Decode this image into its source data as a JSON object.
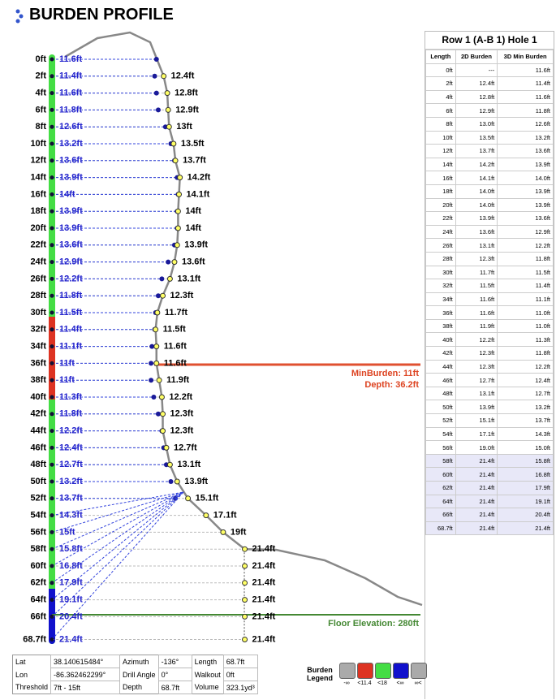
{
  "header": {
    "title": "BURDEN PROFILE"
  },
  "profile": {
    "burden_3d": [
      "11.6ft",
      "11.4ft",
      "11.6ft",
      "11.8ft",
      "12.6ft",
      "13.2ft",
      "13.6ft",
      "13.9ft",
      "14ft",
      "13.9ft",
      "13.9ft",
      "13.6ft",
      "12.9ft",
      "12.2ft",
      "11.8ft",
      "11.5ft",
      "11.4ft",
      "11.1ft",
      "11ft",
      "11ft",
      "11.3ft",
      "11.8ft",
      "12.2ft",
      "12.4ft",
      "12.7ft",
      "13.2ft",
      "13.7ft",
      "14.3ft",
      "15ft",
      "15.8ft",
      "16.8ft",
      "17.9ft",
      "19.1ft",
      "20.4ft",
      "21.4ft"
    ],
    "burden_2d": [
      null,
      "12.4ft",
      "12.8ft",
      "12.9ft",
      "13ft",
      "13.5ft",
      "13.7ft",
      "14.2ft",
      "14.1ft",
      "14ft",
      "14ft",
      "13.9ft",
      "13.6ft",
      "13.1ft",
      "12.3ft",
      "11.7ft",
      "11.5ft",
      "11.6ft",
      "11.6ft",
      "11.9ft",
      "12.2ft",
      "12.3ft",
      "12.3ft",
      "12.7ft",
      "13.1ft",
      "13.9ft",
      "15.1ft",
      "17.1ft",
      "19ft",
      "21.4ft",
      "21.4ft",
      "21.4ft",
      "21.4ft",
      "21.4ft",
      "21.4ft"
    ]
  },
  "annotations": {
    "min_burden": "MinBurden: 11ft",
    "min_depth": "Depth: 36.2ft",
    "floor": "Floor Elevation: 280ft"
  },
  "table": {
    "title": "Row 1 (A-B 1) Hole 1",
    "columns": [
      "Length",
      "2D Burden",
      "3D Min Burden"
    ],
    "rows": [
      [
        "0ft",
        "---",
        "11.6ft"
      ],
      [
        "2ft",
        "12.4ft",
        "11.4ft"
      ],
      [
        "4ft",
        "12.8ft",
        "11.6ft"
      ],
      [
        "6ft",
        "12.9ft",
        "11.8ft"
      ],
      [
        "8ft",
        "13.0ft",
        "12.6ft"
      ],
      [
        "10ft",
        "13.5ft",
        "13.2ft"
      ],
      [
        "12ft",
        "13.7ft",
        "13.6ft"
      ],
      [
        "14ft",
        "14.2ft",
        "13.9ft"
      ],
      [
        "16ft",
        "14.1ft",
        "14.0ft"
      ],
      [
        "18ft",
        "14.0ft",
        "13.9ft"
      ],
      [
        "20ft",
        "14.0ft",
        "13.9ft"
      ],
      [
        "22ft",
        "13.9ft",
        "13.6ft"
      ],
      [
        "24ft",
        "13.6ft",
        "12.9ft"
      ],
      [
        "26ft",
        "13.1ft",
        "12.2ft"
      ],
      [
        "28ft",
        "12.3ft",
        "11.8ft"
      ],
      [
        "30ft",
        "11.7ft",
        "11.5ft"
      ],
      [
        "32ft",
        "11.5ft",
        "11.4ft"
      ],
      [
        "34ft",
        "11.6ft",
        "11.1ft"
      ],
      [
        "36ft",
        "11.6ft",
        "11.0ft"
      ],
      [
        "38ft",
        "11.9ft",
        "11.0ft"
      ],
      [
        "40ft",
        "12.2ft",
        "11.3ft"
      ],
      [
        "42ft",
        "12.3ft",
        "11.8ft"
      ],
      [
        "44ft",
        "12.3ft",
        "12.2ft"
      ],
      [
        "46ft",
        "12.7ft",
        "12.4ft"
      ],
      [
        "48ft",
        "13.1ft",
        "12.7ft"
      ],
      [
        "50ft",
        "13.9ft",
        "13.2ft"
      ],
      [
        "52ft",
        "15.1ft",
        "13.7ft"
      ],
      [
        "54ft",
        "17.1ft",
        "14.3ft"
      ],
      [
        "56ft",
        "19.0ft",
        "15.0ft"
      ],
      [
        "58ft",
        "21.4ft",
        "15.8ft"
      ],
      [
        "60ft",
        "21.4ft",
        "16.8ft"
      ],
      [
        "62ft",
        "21.4ft",
        "17.9ft"
      ],
      [
        "64ft",
        "21.4ft",
        "19.1ft"
      ],
      [
        "66ft",
        "21.4ft",
        "20.4ft"
      ],
      [
        "68.7ft",
        "21.4ft",
        "21.4ft"
      ]
    ]
  },
  "info": {
    "rows": [
      [
        "Lat",
        "38.140615484°",
        "Azimuth",
        "-136°",
        "Length",
        "68.7ft"
      ],
      [
        "Lon",
        "-86.362462299°",
        "Drill Angle",
        "0°",
        "Walkout",
        "0ft"
      ],
      [
        "Threshold",
        "7ft - 15ft",
        "Depth",
        "68.7ft",
        "Volume",
        "323.1yd³"
      ]
    ]
  },
  "legend": {
    "title": "Burden Legend",
    "labels": [
      "-∞",
      "<11.4",
      "<18",
      "<∞",
      "∞<"
    ]
  }
}
